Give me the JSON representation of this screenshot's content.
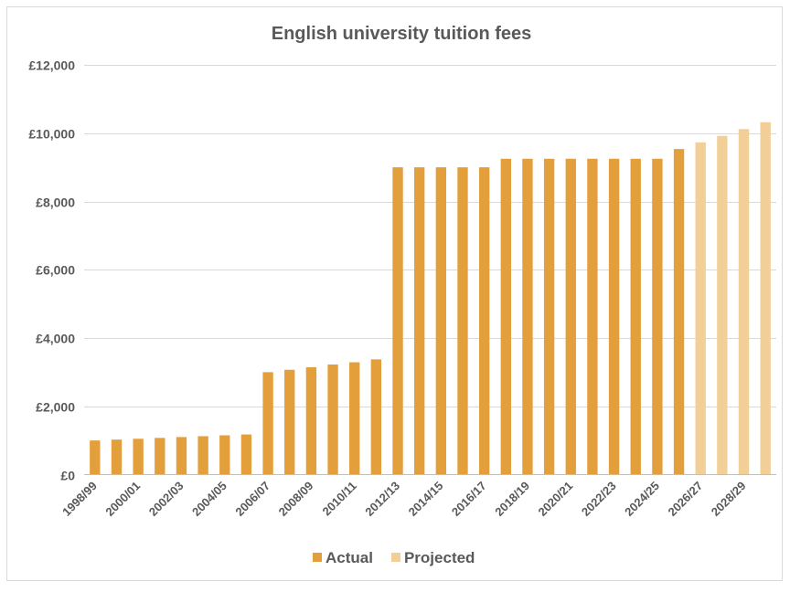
{
  "chart_data": {
    "type": "bar",
    "title": "English university tuition fees",
    "xlabel": "",
    "ylabel": "",
    "ylim": [
      0,
      12000
    ],
    "y_ticks": [
      0,
      2000,
      4000,
      6000,
      8000,
      10000,
      12000
    ],
    "y_tick_labels": [
      "£0",
      "£2,000",
      "£4,000",
      "£6,000",
      "£8,000",
      "£10,000",
      "£12,000"
    ],
    "grid": true,
    "legend_position": "bottom",
    "categories": [
      "1998/99",
      "1999/00",
      "2000/01",
      "2001/02",
      "2002/03",
      "2003/04",
      "2004/05",
      "2005/06",
      "2006/07",
      "2007/08",
      "2008/09",
      "2009/10",
      "2010/11",
      "2011/12",
      "2012/13",
      "2013/14",
      "2014/15",
      "2015/16",
      "2016/17",
      "2017/18",
      "2018/19",
      "2019/20",
      "2020/21",
      "2021/22",
      "2022/23",
      "2023/24",
      "2024/25",
      "2025/26",
      "2026/27",
      "2027/28",
      "2028/29",
      "2029/30"
    ],
    "x_tick_labels_shown": [
      "1998/99",
      "2000/01",
      "2002/03",
      "2004/05",
      "2006/07",
      "2008/09",
      "2010/11",
      "2012/13",
      "2014/15",
      "2016/17",
      "2018/19",
      "2020/21",
      "2022/23",
      "2024/25",
      "2026/27",
      "2028/29"
    ],
    "series": [
      {
        "name": "Actual",
        "color": "#e29f3c",
        "values": [
          1000,
          1025,
          1050,
          1075,
          1100,
          1125,
          1150,
          1175,
          3000,
          3070,
          3145,
          3225,
          3290,
          3375,
          9000,
          9000,
          9000,
          9000,
          9000,
          9250,
          9250,
          9250,
          9250,
          9250,
          9250,
          9250,
          9250,
          9535,
          null,
          null,
          null,
          null
        ]
      },
      {
        "name": "Projected",
        "color": "#f2cf97",
        "values": [
          null,
          null,
          null,
          null,
          null,
          null,
          null,
          null,
          null,
          null,
          null,
          null,
          null,
          null,
          null,
          null,
          null,
          null,
          null,
          null,
          null,
          null,
          null,
          null,
          null,
          null,
          null,
          null,
          9730,
          9920,
          10120,
          10320
        ]
      }
    ]
  }
}
